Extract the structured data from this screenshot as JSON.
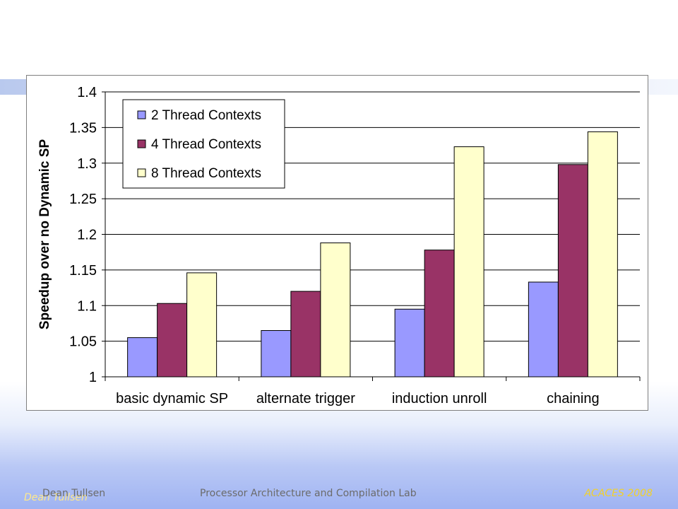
{
  "footer": {
    "author": "Dean Tullsen",
    "lab": "Processor Architecture and Compilation Lab",
    "event": "ACACES 2008"
  },
  "chart_data": {
    "type": "bar",
    "title": "",
    "xlabel": "",
    "ylabel": "Speedup over no Dynamic SP",
    "ylim": [
      1,
      1.4
    ],
    "yticks": [
      "1",
      "1.05",
      "1.1",
      "1.15",
      "1.2",
      "1.25",
      "1.3",
      "1.35",
      "1.4"
    ],
    "grid": true,
    "legend_position": "top-left",
    "categories": [
      "basic dynamic SP",
      "alternate trigger",
      "induction unroll",
      "chaining"
    ],
    "series": [
      {
        "name": "2 Thread Contexts",
        "color": "#9999ff",
        "values": [
          1.055,
          1.065,
          1.095,
          1.133
        ]
      },
      {
        "name": "4 Thread Contexts",
        "color": "#993366",
        "values": [
          1.103,
          1.12,
          1.178,
          1.298
        ]
      },
      {
        "name": "8 Thread Contexts",
        "color": "#ffffcc",
        "values": [
          1.146,
          1.188,
          1.323,
          1.344
        ]
      }
    ]
  }
}
